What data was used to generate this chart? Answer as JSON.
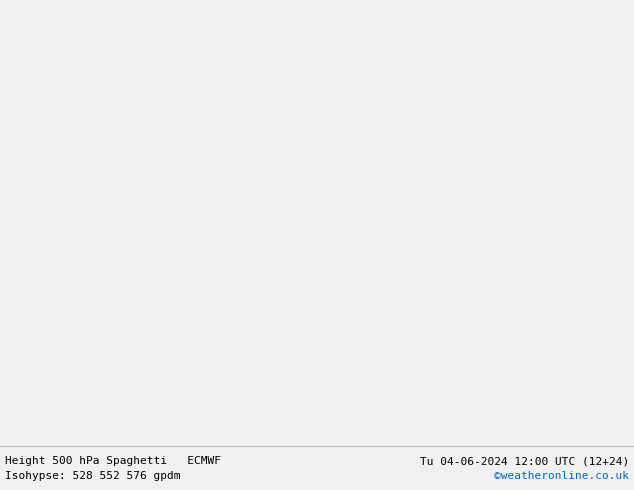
{
  "title_left": "Height 500 hPa Spaghetti   ECMWF",
  "title_right": "Tu 04-06-2024 12:00 UTC (12+24)",
  "subtitle_left": "Isohypse: 528 552 576 gpdm",
  "subtitle_right": "©weatheronline.co.uk",
  "subtitle_right_color": "#0066cc",
  "bg_color": "#f0f0f0",
  "land_color": "#c8f0a0",
  "sea_color": "#e8e8e8",
  "border_color": "#aaaaaa",
  "coast_color": "#888888",
  "country_color": "#aaaaaa",
  "text_color": "#000000",
  "fig_width": 6.34,
  "fig_height": 4.9,
  "dpi": 100,
  "map_extent": [
    -75,
    55,
    25,
    80
  ],
  "n_members": 50,
  "spaghetti_colors": [
    "#ff0000",
    "#0000ff",
    "#00cc00",
    "#ff8800",
    "#cc00cc",
    "#00cccc",
    "#888800",
    "#880000",
    "#000088",
    "#008800",
    "#ff4444",
    "#4444ff",
    "#44cc44",
    "#ffaa44",
    "#cc44cc",
    "#44cccc",
    "#cccc44",
    "#884444",
    "#444488",
    "#448844",
    "#ff0088",
    "#0088ff",
    "#88ff00",
    "#ff4400",
    "#8800ff",
    "#ff6666",
    "#6666ff",
    "#66cc66",
    "#ffcc66",
    "#cc66cc",
    "#66cccc",
    "#cccc66",
    "#cc6666",
    "#6666cc",
    "#66cc99",
    "#ff99cc",
    "#99ccff",
    "#ccff99",
    "#ffcc99",
    "#cc99ff",
    "#99ffcc",
    "#ffff00",
    "#ff00ff",
    "#00ffff",
    "#ff7700",
    "#7700ff",
    "#00ff77",
    "#ff0077",
    "#0077ff",
    "#77ff00"
  ]
}
